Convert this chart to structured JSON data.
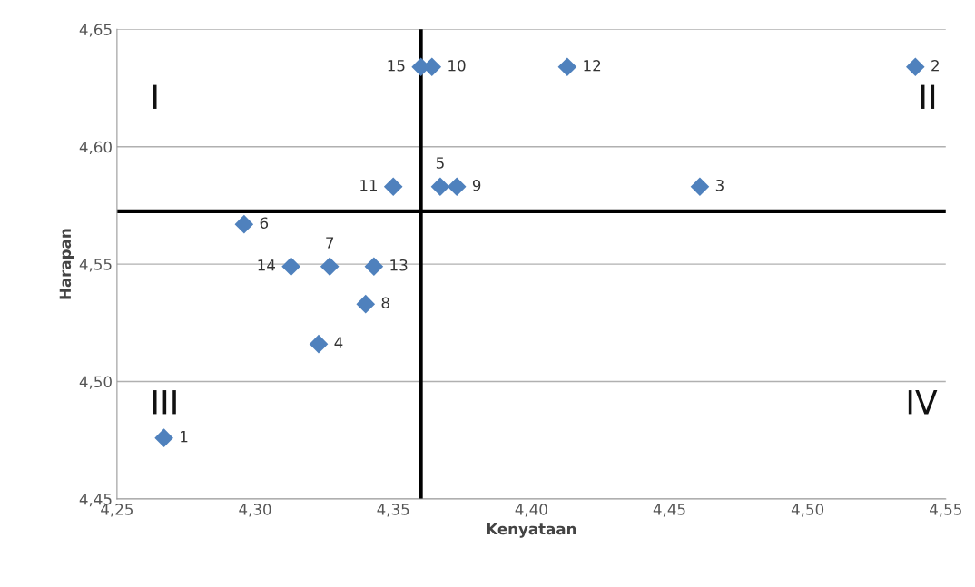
{
  "chart_data": {
    "type": "scatter",
    "xlabel": "Kenyataan",
    "ylabel": "Harapan",
    "x": [
      4.267,
      4.539,
      4.461,
      4.323,
      4.367,
      4.296,
      4.327,
      4.34,
      4.373,
      4.364,
      4.35,
      4.413,
      4.343,
      4.313,
      4.36
    ],
    "series": [
      {
        "color": "#4f81bd",
        "values": [
          4.476,
          4.634,
          4.583,
          4.516,
          4.583,
          4.567,
          4.549,
          4.533,
          4.583,
          4.634,
          4.583,
          4.634,
          4.549,
          4.549,
          4.634
        ]
      }
    ],
    "marker": "diamond",
    "xlim": [
      4.25,
      4.55
    ],
    "xticks": [
      {
        "value": 4.25,
        "label": "4,25"
      },
      {
        "value": 4.3,
        "label": "4,30"
      },
      {
        "value": 4.35,
        "label": "4,35"
      },
      {
        "value": 4.4,
        "label": "4,40"
      },
      {
        "value": 4.45,
        "label": "4,45"
      },
      {
        "value": 4.5,
        "label": "4,50"
      },
      {
        "value": 4.55,
        "label": "4,55"
      }
    ],
    "ylim": [
      4.45,
      4.65
    ],
    "yticks": [
      {
        "value": 4.45,
        "label": "4,45"
      },
      {
        "value": 4.5,
        "label": "4,50"
      },
      {
        "value": 4.55,
        "label": "4,55"
      },
      {
        "value": 4.6,
        "label": "4,60"
      },
      {
        "value": 4.65,
        "label": "4,65"
      }
    ],
    "grid": "y",
    "ref_lines": [
      {
        "axis": "x",
        "value": 4.36,
        "color": "#000000"
      },
      {
        "axis": "y",
        "value": 4.5725,
        "color": "#000000"
      }
    ],
    "annotations": [
      "I",
      "II",
      "III",
      "IV",
      {
        "text": "1",
        "x": 4.267,
        "y": 4.476
      },
      {
        "text": "2",
        "x": 4.539,
        "y": 4.634
      },
      {
        "text": "3",
        "x": 4.461,
        "y": 4.583
      },
      {
        "text": "4",
        "x": 4.323,
        "y": 4.516
      },
      {
        "text": "5",
        "x": 4.367,
        "y": 4.583
      },
      {
        "text": "6",
        "x": 4.296,
        "y": 4.567
      },
      {
        "text": "7",
        "x": 4.327,
        "y": 4.549
      },
      {
        "text": "8",
        "x": 4.34,
        "y": 4.533
      },
      {
        "text": "9",
        "x": 4.373,
        "y": 4.583
      },
      {
        "text": "10",
        "x": 4.364,
        "y": 4.634
      },
      {
        "text": "11",
        "x": 4.35,
        "y": 4.583
      },
      {
        "text": "12",
        "x": 4.413,
        "y": 4.634
      },
      {
        "text": "13",
        "x": 4.343,
        "y": 4.549
      },
      {
        "text": "14",
        "x": 4.313,
        "y": 4.549
      },
      {
        "text": "15",
        "x": 4.36,
        "y": 4.634
      }
    ]
  }
}
